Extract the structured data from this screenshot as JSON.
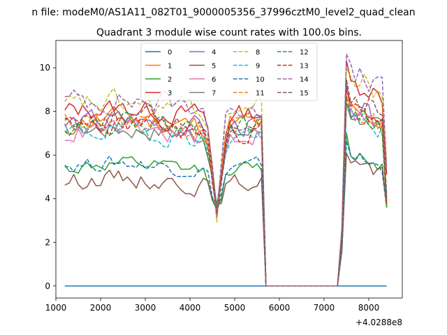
{
  "chart_data": {
    "type": "line",
    "suptitle": "n file: modeM0/AS1A11_082T01_9000005356_37996cztM0_level2_quad_clean",
    "title": "Quadrant 3 module wise count rates with 100.0s bins.",
    "xlabel": "",
    "ylabel": "",
    "x_offset_label": "+4.0288e8",
    "xlim": [
      1000,
      8750
    ],
    "ylim": [
      -0.55,
      11.25
    ],
    "x_ticks": [
      1000,
      2000,
      3000,
      4000,
      5000,
      6000,
      7000,
      8000
    ],
    "y_ticks": [
      0,
      2,
      4,
      6,
      8,
      10
    ],
    "x_tick_labels": [
      "1000",
      "2000",
      "3000",
      "4000",
      "5000",
      "6000",
      "7000",
      "8000"
    ],
    "y_tick_labels": [
      "0",
      "2",
      "4",
      "6",
      "8",
      "10"
    ],
    "grid": false,
    "legend": {
      "placement": "upper-center",
      "columns": 4
    },
    "segments": {
      "a": {
        "x_start": 1200,
        "x_end": 5600
      },
      "b": {
        "x_start": 7500,
        "x_end": 8400
      },
      "gap_start": 5700,
      "gap_end": 7300,
      "first_end": 8400,
      "step": 100,
      "rising_edge_x": 7400,
      "rising_edge_frac": 0.28
    },
    "series": [
      {
        "name": "0",
        "color": "#1f77b4",
        "dash": "solid",
        "constant": 0
      },
      {
        "name": "1",
        "color": "#ff7f0e",
        "dash": "solid",
        "level_a": 7.5,
        "level_b": 8.2,
        "amp": 0.45,
        "seed": 11
      },
      {
        "name": "2",
        "color": "#2ca02c",
        "dash": "solid",
        "level_a": 5.4,
        "level_b": 6.2,
        "amp": 0.3,
        "seed": 12
      },
      {
        "name": "3",
        "color": "#d62728",
        "dash": "solid",
        "level_a": 8.0,
        "level_b": 9.4,
        "amp": 0.4,
        "seed": 13
      },
      {
        "name": "4",
        "color": "#9467bd",
        "dash": "solid",
        "level_a": 7.4,
        "level_b": 8.3,
        "amp": 0.45,
        "seed": 14
      },
      {
        "name": "5",
        "color": "#8c564b",
        "dash": "solid",
        "level_a": 4.8,
        "level_b": 5.8,
        "amp": 0.35,
        "seed": 15
      },
      {
        "name": "6",
        "color": "#e377c2",
        "dash": "solid",
        "level_a": 7.0,
        "level_b": 8.0,
        "amp": 0.4,
        "seed": 16
      },
      {
        "name": "7",
        "color": "#7f7f7f",
        "dash": "solid",
        "level_a": 7.1,
        "level_b": 8.0,
        "amp": 0.4,
        "seed": 17
      },
      {
        "name": "8",
        "color": "#bcbd22",
        "dash": "dashed",
        "level_a": 8.2,
        "level_b": 9.6,
        "amp": 0.5,
        "seed": 18
      },
      {
        "name": "9",
        "color": "#17becf",
        "dash": "dashed",
        "level_a": 7.0,
        "level_b": 7.8,
        "amp": 0.4,
        "seed": 19
      },
      {
        "name": "10",
        "color": "#1f77b4",
        "dash": "dashed",
        "level_a": 5.5,
        "level_b": 6.1,
        "amp": 0.3,
        "seed": 20
      },
      {
        "name": "11",
        "color": "#ff7f0e",
        "dash": "dashed",
        "level_a": 7.3,
        "level_b": 8.1,
        "amp": 0.45,
        "seed": 21
      },
      {
        "name": "12",
        "color": "#2ca02c",
        "dash": "dashed",
        "level_a": 7.4,
        "level_b": 8.0,
        "amp": 0.4,
        "seed": 22
      },
      {
        "name": "13",
        "color": "#d62728",
        "dash": "dashed",
        "level_a": 7.2,
        "level_b": 8.3,
        "amp": 0.45,
        "seed": 23
      },
      {
        "name": "14",
        "color": "#9467bd",
        "dash": "dashed",
        "level_a": 8.4,
        "level_b": 9.8,
        "amp": 0.5,
        "seed": 24
      },
      {
        "name": "15",
        "color": "#8c564b",
        "dash": "dashed",
        "level_a": 7.6,
        "level_b": 8.6,
        "amp": 0.45,
        "seed": 25
      }
    ]
  }
}
